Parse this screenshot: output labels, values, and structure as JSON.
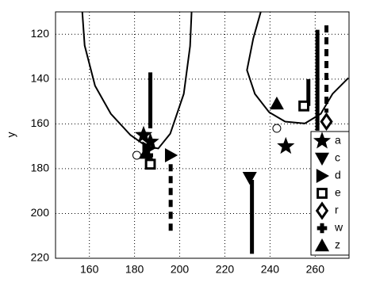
{
  "chart_data": {
    "type": "scatter",
    "ylabel": "y",
    "xlim": [
      145,
      275
    ],
    "xticks": [
      160,
      180,
      200,
      220,
      240,
      260
    ],
    "ylim": [
      110,
      220
    ],
    "yticks": [
      120,
      140,
      160,
      180,
      200,
      220
    ],
    "y_reversed": true,
    "grid": true,
    "grid_style": "dotted",
    "legend": "lower right",
    "series": [
      {
        "color": "#000000",
        "line_style": "solid",
        "x": [
          156.8,
          157.9,
          162.5,
          169.5,
          178.2,
          185.3,
          190.5,
          195.8,
          201.8,
          204.6,
          205.3
        ],
        "values": [
          109.3,
          125,
          143,
          155.5,
          165,
          170,
          171,
          164.4,
          146.6,
          125.3,
          109.3
        ]
      },
      {
        "color": "#000000",
        "line_style": "solid",
        "x": [
          236.1,
          232.6,
          229.8,
          233.3,
          239.6,
          246.7,
          255.4,
          262.5,
          267.7,
          274.7
        ],
        "values": [
          109.3,
          121.8,
          136,
          146.6,
          154.8,
          159,
          159.8,
          155.5,
          146.6,
          139.5
        ]
      },
      {
        "color": "#000000",
        "line_style": "thick",
        "x": [
          187,
          187
        ],
        "values": [
          137,
          162
        ]
      },
      {
        "color": "#000000",
        "line_style": "thick",
        "x": [
          232,
          232
        ],
        "values": [
          185,
          218
        ]
      },
      {
        "color": "#000000",
        "line_style": "thick",
        "x": [
          261,
          261
        ],
        "values": [
          118,
          163
        ]
      },
      {
        "color": "#000000",
        "line_style": "thick",
        "x": [
          257,
          257
        ],
        "values": [
          140,
          152
        ]
      },
      {
        "color": "#000000",
        "line_style": "dashed",
        "x": [
          196,
          196
        ],
        "values": [
          178,
          208
        ]
      },
      {
        "color": "#000000",
        "line_style": "dashed",
        "x": [
          265,
          265
        ],
        "values": [
          116,
          155
        ]
      },
      {
        "color": "#000000",
        "marker": "circle",
        "x": [
          181,
          243
        ],
        "values": [
          174,
          162
        ]
      },
      {
        "name": "a",
        "color": "#000000",
        "marker": "star",
        "x": [
          184,
          187,
          247
        ],
        "values": [
          165,
          168,
          170
        ]
      },
      {
        "name": "c",
        "color": "#000000",
        "marker": "triangle-down",
        "x": [
          231
        ],
        "values": [
          184
        ]
      },
      {
        "name": "d",
        "color": "#000000",
        "marker": "triangle-right",
        "x": [
          196,
          186
        ],
        "values": [
          174,
          171
        ]
      },
      {
        "name": "e",
        "color": "#000000",
        "marker": "square",
        "x": [
          187,
          255
        ],
        "values": [
          178,
          152
        ]
      },
      {
        "name": "r",
        "color": "#000000",
        "marker": "diamond",
        "x": [
          265
        ],
        "values": [
          159
        ]
      },
      {
        "name": "w",
        "color": "#000000",
        "marker": "plus",
        "x": [
          186
        ],
        "values": [
          174
        ]
      },
      {
        "name": "z",
        "color": "#000000",
        "marker": "triangle-up",
        "x": [
          185,
          243
        ],
        "values": [
          173,
          151
        ]
      }
    ]
  }
}
